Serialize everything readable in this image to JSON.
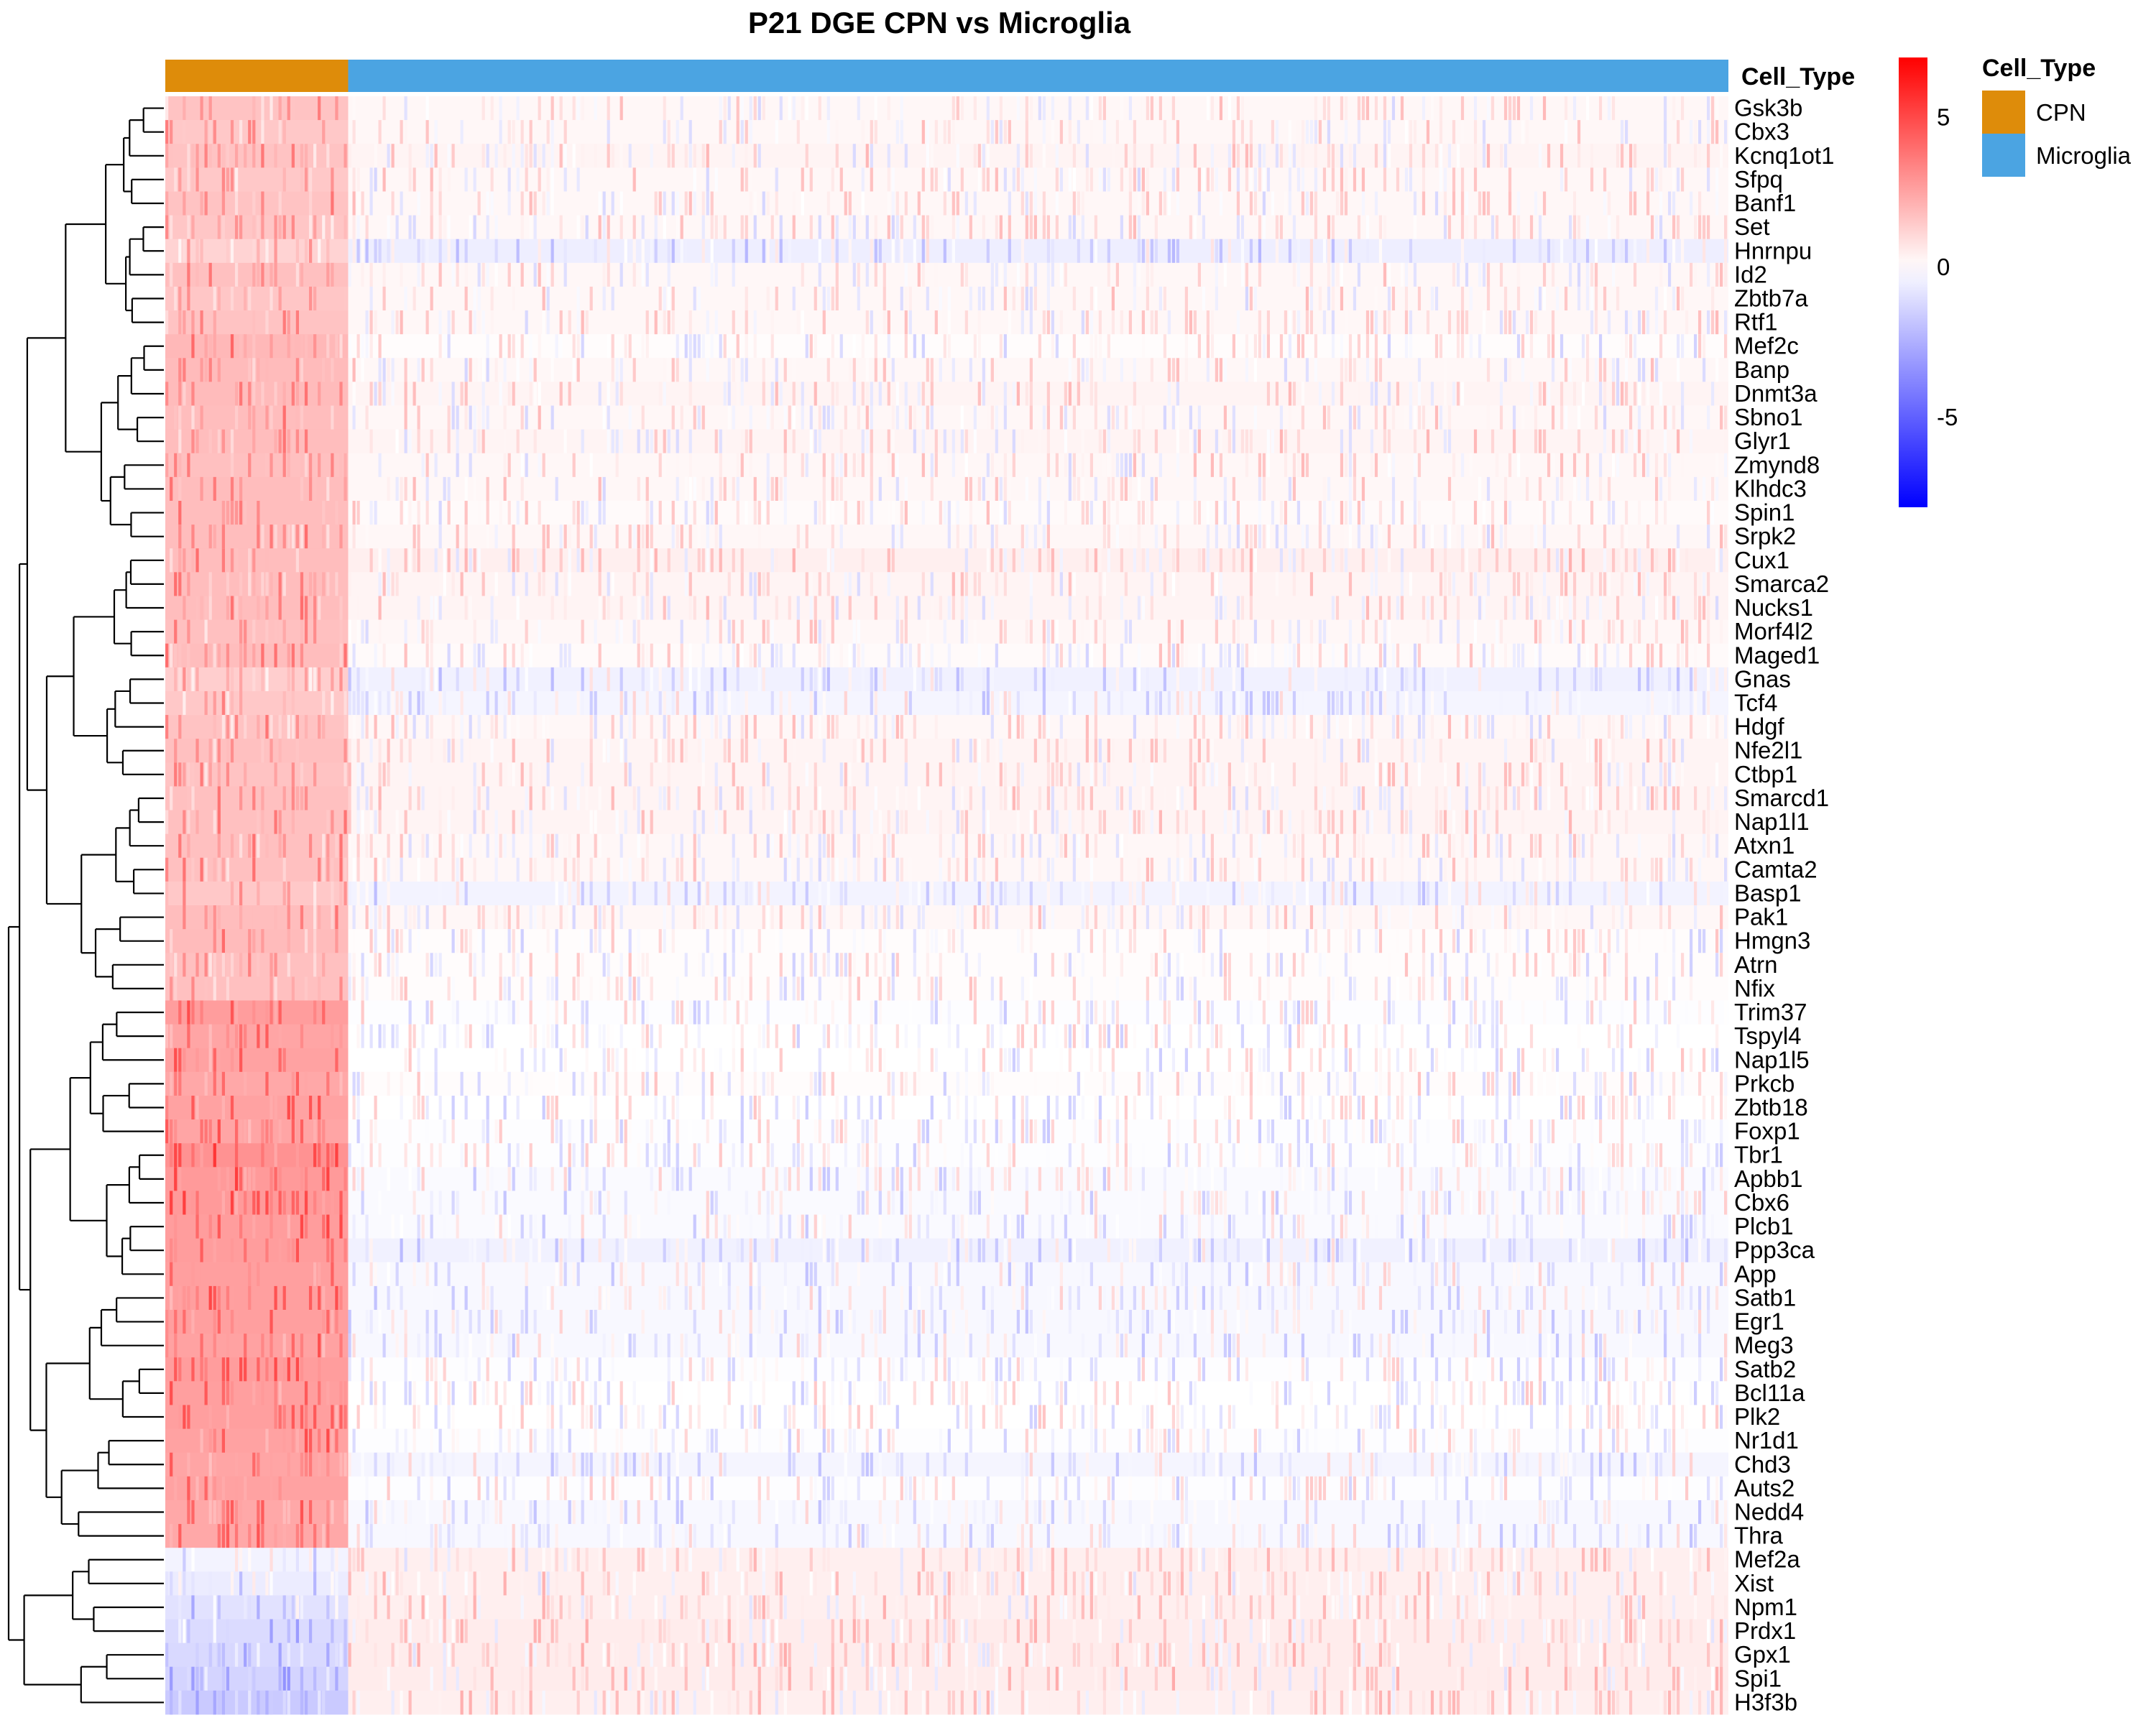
{
  "chart_data": {
    "type": "heatmap",
    "title": "P21 DGE CPN vs Microglia",
    "annotation": {
      "name": "Cell_Type",
      "legend_title": "Cell_Type",
      "groups": [
        {
          "label": "CPN",
          "color": "#DE8C0A",
          "fraction": 0.117
        },
        {
          "label": "Microglia",
          "color": "#4BA4E2",
          "fraction": 0.883
        }
      ]
    },
    "color_scale": {
      "min": -8,
      "max": 7,
      "low_color": "#0000FF",
      "mid_color": "#FFFFFF",
      "high_color": "#FF0000",
      "ticks": [
        5,
        0,
        -5
      ]
    },
    "genes": [
      "Gsk3b",
      "Cbx3",
      "Kcnq1ot1",
      "Sfpq",
      "Banf1",
      "Set",
      "Hnrnpu",
      "Id2",
      "Zbtb7a",
      "Rtf1",
      "Mef2c",
      "Banp",
      "Dnmt3a",
      "Sbno1",
      "Glyr1",
      "Zmynd8",
      "Klhdc3",
      "Spin1",
      "Srpk2",
      "Cux1",
      "Smarca2",
      "Nucks1",
      "Morf4l2",
      "Maged1",
      "Gnas",
      "Tcf4",
      "Hdgf",
      "Nfe2l1",
      "Ctbp1",
      "Smarcd1",
      "Nap1l1",
      "Atxn1",
      "Camta2",
      "Basp1",
      "Pak1",
      "Hmgn3",
      "Atrn",
      "Nfix",
      "Trim37",
      "Tspyl4",
      "Nap1l5",
      "Prkcb",
      "Zbtb18",
      "Foxp1",
      "Tbr1",
      "Apbb1",
      "Cbx6",
      "Plcb1",
      "Ppp3ca",
      "App",
      "Satb1",
      "Egr1",
      "Meg3",
      "Satb2",
      "Bcl11a",
      "Plk2",
      "Nr1d1",
      "Chd3",
      "Auts2",
      "Nedd4",
      "Thra",
      "Mef2a",
      "Xist",
      "Npm1",
      "Prdx1",
      "Gpx1",
      "Spi1",
      "H3f3b"
    ],
    "mean_expression": {
      "CPN": [
        2.2,
        2.0,
        2.2,
        2.0,
        2.2,
        2.1,
        1.6,
        2.3,
        2.1,
        2.2,
        2.6,
        2.5,
        2.5,
        2.4,
        2.4,
        2.3,
        2.4,
        2.4,
        2.4,
        2.4,
        2.4,
        2.4,
        2.3,
        2.4,
        1.8,
        2.0,
        2.2,
        2.3,
        2.2,
        2.3,
        2.3,
        2.3,
        2.3,
        2.0,
        2.4,
        2.5,
        2.3,
        2.3,
        3.6,
        3.3,
        3.4,
        3.2,
        3.4,
        3.3,
        4.0,
        3.7,
        3.7,
        3.6,
        3.6,
        3.5,
        3.5,
        3.5,
        3.4,
        3.6,
        3.5,
        3.5,
        3.4,
        3.3,
        3.4,
        3.2,
        3.2,
        -0.5,
        -0.8,
        -1.2,
        -1.5,
        -1.6,
        -1.8,
        -2.2
      ],
      "Microglia": [
        0.3,
        0.3,
        0.4,
        0.3,
        0.3,
        0.3,
        -0.7,
        0.3,
        0.3,
        0.3,
        0.1,
        0.3,
        0.4,
        0.3,
        0.4,
        0.3,
        0.3,
        0.2,
        0.3,
        0.6,
        0.4,
        0.4,
        0.3,
        0.2,
        -0.6,
        -0.4,
        0.3,
        0.4,
        0.4,
        0.4,
        0.4,
        0.3,
        0.3,
        -0.5,
        0.3,
        0.1,
        0.1,
        0.1,
        -0.1,
        0.0,
        0.0,
        0.1,
        0.0,
        -0.1,
        -0.1,
        -0.2,
        -0.2,
        -0.2,
        -0.6,
        -0.3,
        -0.3,
        -0.3,
        -0.3,
        -0.1,
        0.0,
        0.0,
        -0.1,
        -0.4,
        -0.1,
        -0.3,
        -0.3,
        0.6,
        0.6,
        0.6,
        0.7,
        0.7,
        0.7,
        0.6
      ]
    }
  }
}
